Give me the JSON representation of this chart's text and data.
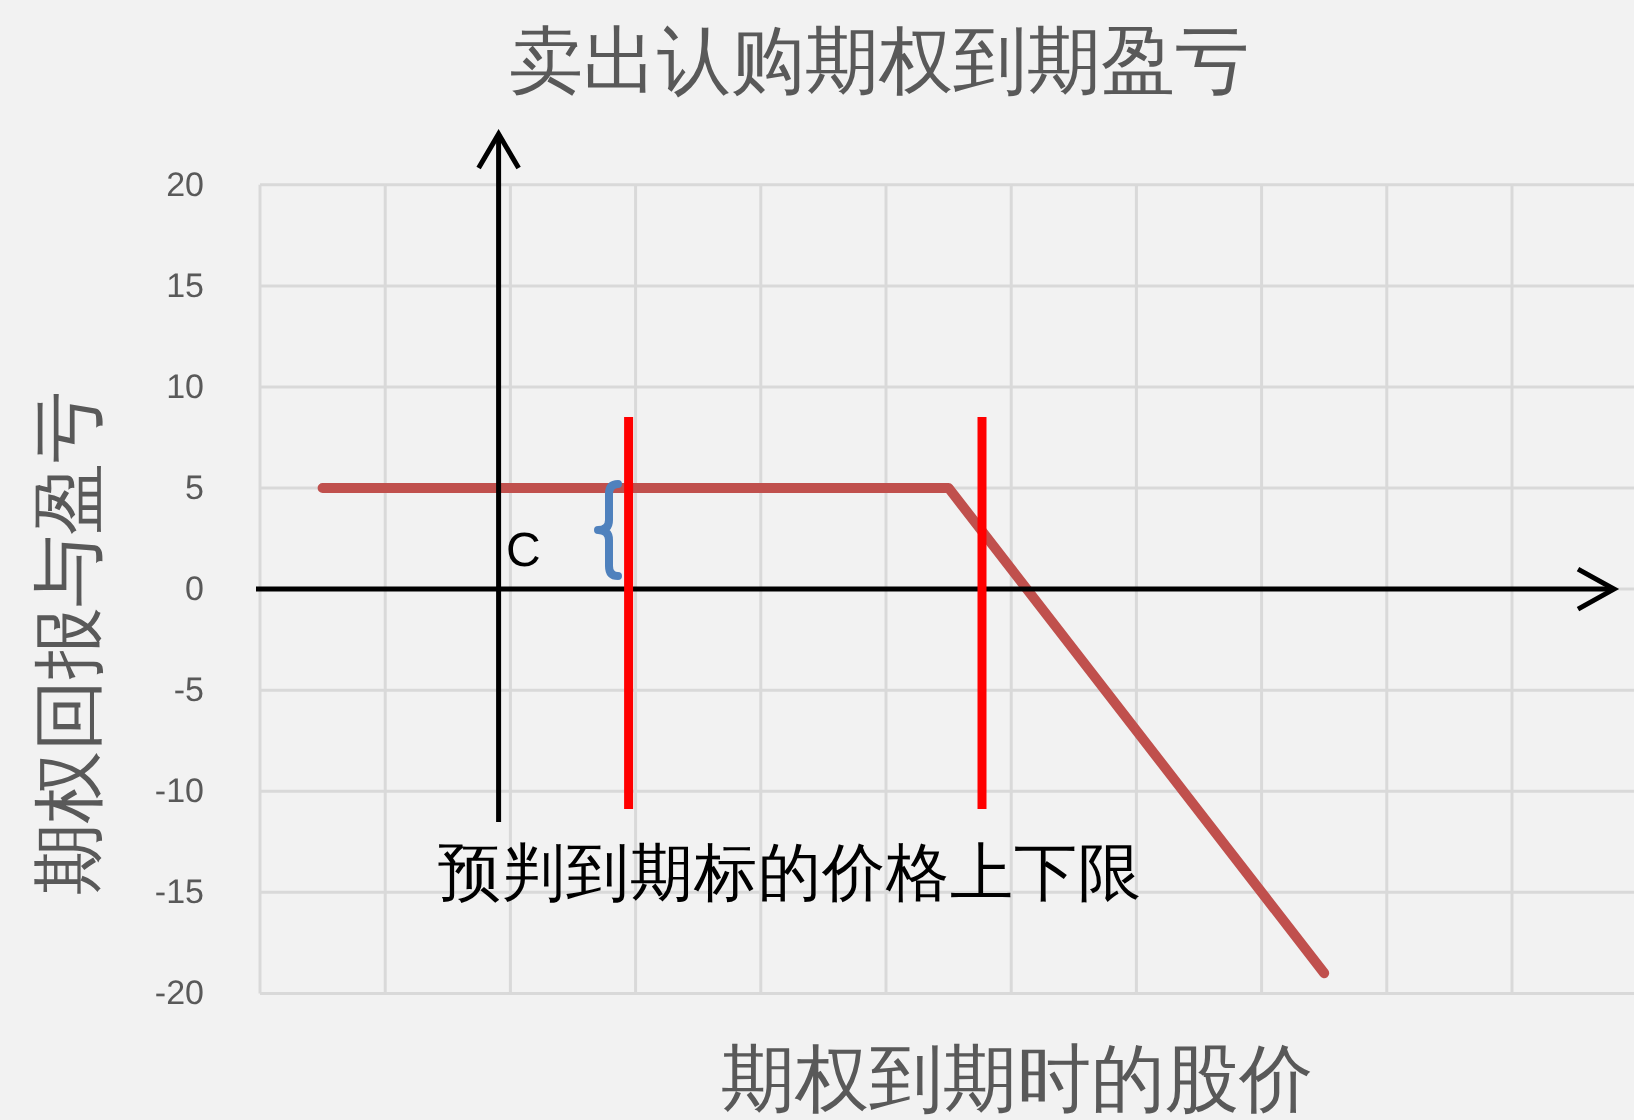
{
  "chart_data": {
    "type": "line",
    "title": "卖出认购期权到期盈亏",
    "xlabel": "期权到期时的股价",
    "ylabel": "期权回报与盈亏",
    "categories": [
      null,
      null,
      null,
      null,
      null,
      null,
      null,
      null,
      null,
      null,
      null
    ],
    "values": [
      5,
      5,
      5,
      5,
      5,
      5,
      -3,
      -11,
      -19,
      null,
      null
    ],
    "color": "#c0504d",
    "ylim": [
      -20,
      20
    ],
    "yticks": [
      -20,
      -15,
      -10,
      -5,
      0,
      5,
      10,
      15,
      20
    ],
    "grid": true,
    "tick_labels": "y",
    "ref_lines": [
      {
        "axis": "y",
        "value": 0,
        "color": "#000000"
      }
    ],
    "annotations": [
      "C",
      "预判到期标的价格上下限"
    ]
  }
}
